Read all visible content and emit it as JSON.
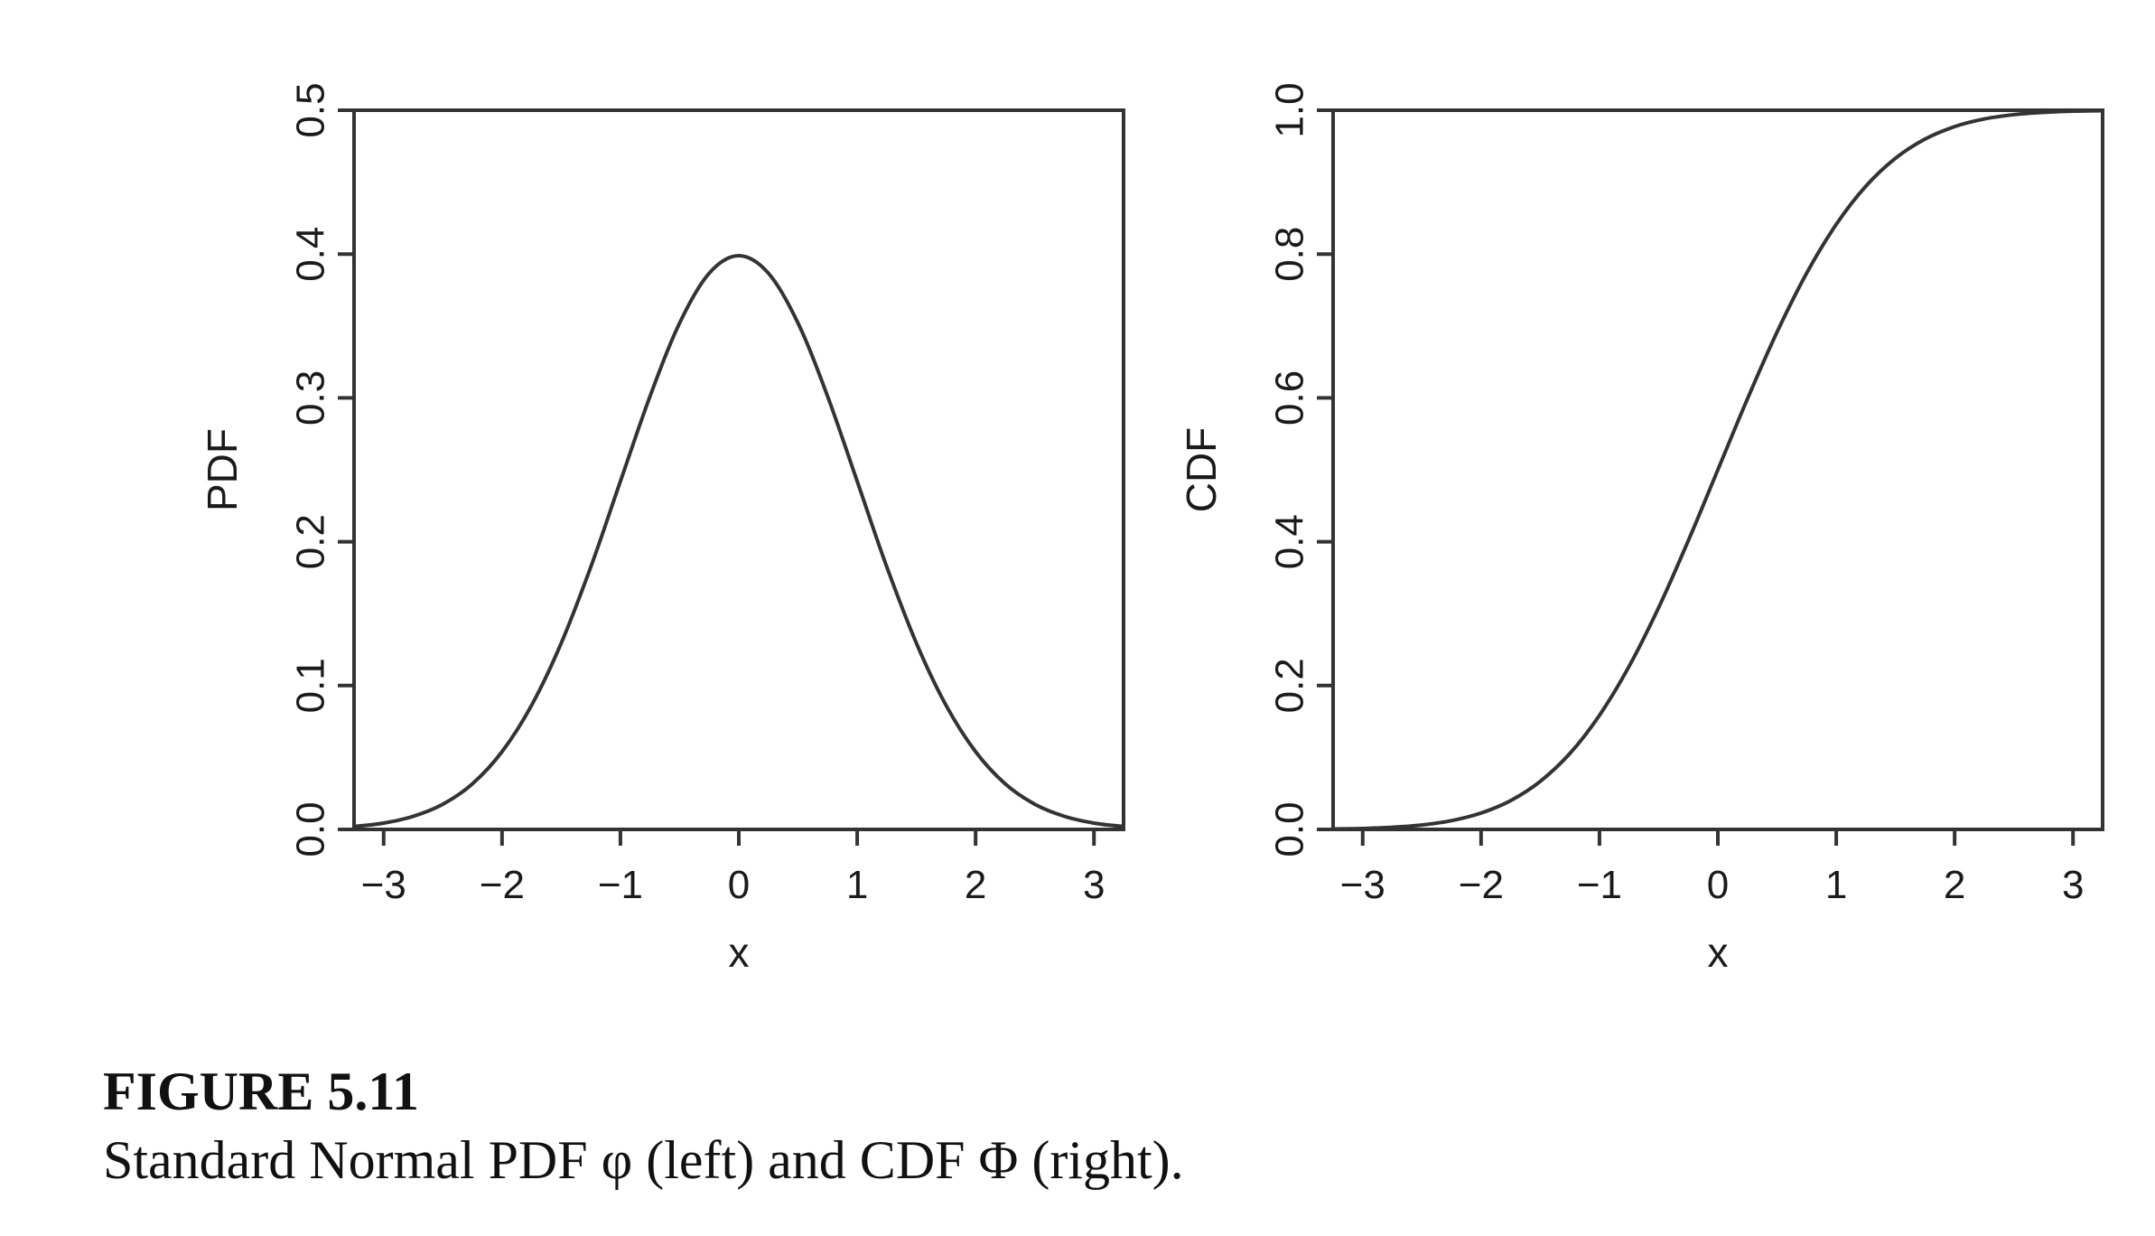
{
  "chart_data": [
    {
      "type": "line",
      "xlabel": "x",
      "ylabel": "PDF",
      "xlim": [
        -3.25,
        3.25
      ],
      "ylim": [
        0,
        0.5
      ],
      "xticks": [
        -3,
        -2,
        -1,
        0,
        1,
        2,
        3
      ],
      "xtick_labels": [
        "−3",
        "−2",
        "−1",
        "0",
        "1",
        "2",
        "3"
      ],
      "yticks": [
        0,
        0.1,
        0.2,
        0.3,
        0.4,
        0.5
      ],
      "ytick_labels": [
        "0.0",
        "0.1",
        "0.2",
        "0.3",
        "0.4",
        "0.5"
      ],
      "grid": false,
      "series": [
        {
          "x": [
            -3.25,
            -3.0,
            -2.75,
            -2.5,
            -2.25,
            -2.0,
            -1.75,
            -1.5,
            -1.25,
            -1.0,
            -0.75,
            -0.5,
            -0.25,
            0.0,
            0.25,
            0.5,
            0.75,
            1.0,
            1.25,
            1.5,
            1.75,
            2.0,
            2.25,
            2.5,
            2.75,
            3.0,
            3.25
          ],
          "y": [
            0.002,
            0.0044,
            0.0091,
            0.0175,
            0.0317,
            0.054,
            0.0863,
            0.1295,
            0.1826,
            0.242,
            0.3011,
            0.3521,
            0.3867,
            0.3989,
            0.3867,
            0.3521,
            0.3011,
            0.242,
            0.1826,
            0.1295,
            0.0863,
            0.054,
            0.0317,
            0.0175,
            0.0091,
            0.0044,
            0.002
          ]
        }
      ]
    },
    {
      "type": "line",
      "xlabel": "x",
      "ylabel": "CDF",
      "xlim": [
        -3.25,
        3.25
      ],
      "ylim": [
        0,
        1.0
      ],
      "xticks": [
        -3,
        -2,
        -1,
        0,
        1,
        2,
        3
      ],
      "xtick_labels": [
        "−3",
        "−2",
        "−1",
        "0",
        "1",
        "2",
        "3"
      ],
      "yticks": [
        0,
        0.2,
        0.4,
        0.6,
        0.8,
        1.0
      ],
      "ytick_labels": [
        "0.0",
        "0.2",
        "0.4",
        "0.6",
        "0.8",
        "1.0"
      ],
      "grid": false,
      "series": [
        {
          "x": [
            -3.25,
            -3.0,
            -2.75,
            -2.5,
            -2.25,
            -2.0,
            -1.75,
            -1.5,
            -1.25,
            -1.0,
            -0.75,
            -0.5,
            -0.25,
            0.0,
            0.25,
            0.5,
            0.75,
            1.0,
            1.25,
            1.5,
            1.75,
            2.0,
            2.25,
            2.5,
            2.75,
            3.0,
            3.25
          ],
          "y": [
            0.0006,
            0.0013,
            0.003,
            0.0062,
            0.0122,
            0.0228,
            0.0401,
            0.0668,
            0.1056,
            0.1587,
            0.2266,
            0.3085,
            0.4013,
            0.5,
            0.5987,
            0.6915,
            0.7734,
            0.8413,
            0.8944,
            0.9332,
            0.9599,
            0.9772,
            0.9878,
            0.9938,
            0.997,
            0.9987,
            0.9994
          ]
        }
      ]
    }
  ],
  "caption": {
    "label": "FIGURE 5.11",
    "text": "Standard Normal PDF φ (left) and CDF Φ (right)."
  }
}
